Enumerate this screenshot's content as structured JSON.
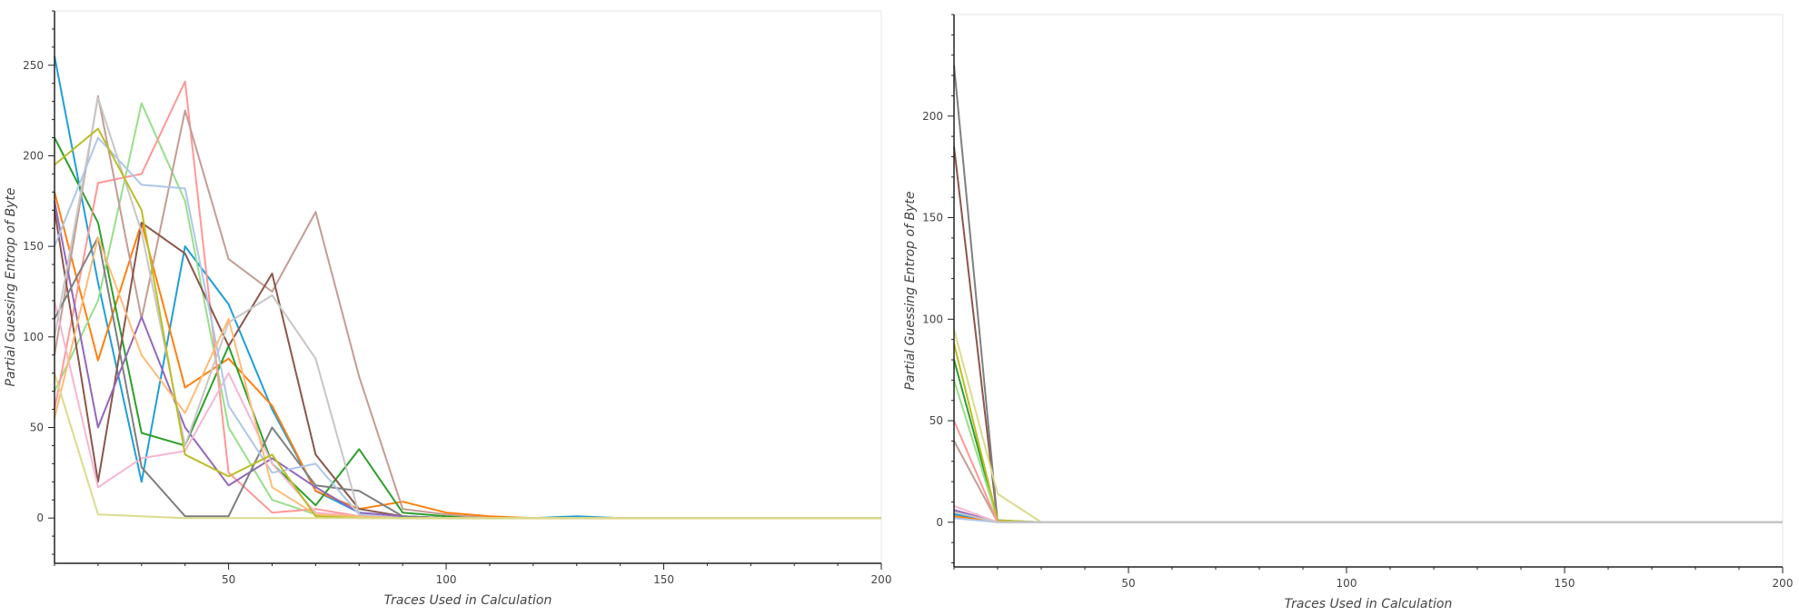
{
  "chart_data": [
    {
      "type": "line",
      "xlabel": "Traces Used in Calculation",
      "ylabel": "Partial Guessing Entrop of Byte",
      "xlim": [
        10,
        200
      ],
      "ylim": [
        -25,
        280
      ],
      "xticks": [
        50,
        100,
        150,
        200
      ],
      "yticks": [
        0,
        50,
        100,
        150,
        200,
        250
      ],
      "x": [
        10,
        20,
        30,
        40,
        50,
        60,
        70,
        80,
        90,
        100,
        110,
        120,
        130,
        140,
        150,
        160,
        170,
        180,
        190,
        200
      ],
      "series": [
        {
          "color": "#1f9fd8",
          "values": [
            255,
            130,
            20,
            150,
            118,
            60,
            15,
            3,
            1,
            0,
            0,
            0,
            1,
            0,
            0,
            0,
            0,
            0,
            0,
            0
          ]
        },
        {
          "color": "#ff7f0e",
          "values": [
            180,
            87,
            163,
            72,
            88,
            62,
            15,
            5,
            9,
            3,
            1,
            0,
            0,
            0,
            0,
            0,
            0,
            0,
            0,
            0
          ]
        },
        {
          "color": "#2ca02c",
          "values": [
            210,
            163,
            47,
            40,
            95,
            30,
            7,
            38,
            3,
            1,
            0,
            0,
            0,
            0,
            0,
            0,
            0,
            0,
            0,
            0
          ]
        },
        {
          "color": "#98df8a",
          "values": [
            70,
            120,
            229,
            175,
            50,
            10,
            2,
            1,
            0,
            0,
            0,
            0,
            0,
            0,
            0,
            0,
            0,
            0,
            0,
            0
          ]
        },
        {
          "color": "#ff9896",
          "values": [
            60,
            185,
            190,
            241,
            25,
            3,
            5,
            1,
            0,
            0,
            0,
            0,
            0,
            0,
            0,
            0,
            0,
            0,
            0,
            0
          ]
        },
        {
          "color": "#c49c94",
          "values": [
            90,
            233,
            110,
            225,
            143,
            125,
            169,
            78,
            5,
            2,
            0,
            0,
            0,
            0,
            0,
            0,
            0,
            0,
            0,
            0
          ]
        },
        {
          "color": "#8c564b",
          "values": [
            170,
            20,
            163,
            146,
            95,
            135,
            35,
            5,
            1,
            0,
            0,
            0,
            0,
            0,
            0,
            0,
            0,
            0,
            0,
            0
          ]
        },
        {
          "color": "#9467bd",
          "values": [
            175,
            50,
            111,
            50,
            18,
            33,
            17,
            3,
            1,
            0,
            0,
            0,
            0,
            0,
            0,
            0,
            0,
            0,
            0,
            0
          ]
        },
        {
          "color": "#f7b6d2",
          "values": [
            120,
            17,
            33,
            37,
            80,
            30,
            3,
            1,
            0,
            0,
            0,
            0,
            0,
            0,
            0,
            0,
            0,
            0,
            0,
            0
          ]
        },
        {
          "color": "#7f7f7f",
          "values": [
            110,
            155,
            28,
            1,
            1,
            50,
            18,
            15,
            1,
            0,
            0,
            0,
            0,
            0,
            0,
            0,
            0,
            0,
            0,
            0
          ]
        },
        {
          "color": "#c7c7c7",
          "values": [
            100,
            232,
            158,
            40,
            108,
            123,
            88,
            2,
            0,
            0,
            0,
            0,
            0,
            0,
            0,
            0,
            0,
            0,
            0,
            0
          ]
        },
        {
          "color": "#aec7e8",
          "values": [
            150,
            210,
            184,
            182,
            62,
            25,
            30,
            2,
            0,
            0,
            0,
            0,
            0,
            0,
            0,
            0,
            0,
            0,
            0,
            0
          ]
        },
        {
          "color": "#ffbb78",
          "values": [
            55,
            155,
            90,
            58,
            110,
            17,
            2,
            1,
            0,
            0,
            0,
            0,
            0,
            0,
            0,
            0,
            0,
            0,
            0,
            0
          ]
        },
        {
          "color": "#bcbd22",
          "values": [
            195,
            215,
            170,
            35,
            23,
            35,
            1,
            0,
            0,
            0,
            0,
            0,
            0,
            0,
            0,
            0,
            0,
            0,
            0,
            0
          ]
        },
        {
          "color": "#dbdb8d",
          "values": [
            80,
            2,
            1,
            0,
            0,
            0,
            0,
            0,
            0,
            0,
            0,
            0,
            0,
            0,
            0,
            0,
            0,
            0,
            0,
            0
          ]
        }
      ]
    },
    {
      "type": "line",
      "xlabel": "Traces Used in Calculation",
      "ylabel": "Partial Guessing Entrop of Byte",
      "xlim": [
        10,
        200
      ],
      "ylim": [
        -22,
        250
      ],
      "xticks": [
        50,
        100,
        150,
        200
      ],
      "yticks": [
        0,
        50,
        100,
        150,
        200
      ],
      "x": [
        10,
        20,
        30,
        40,
        50,
        60,
        70,
        80,
        90,
        100,
        110,
        120,
        130,
        140,
        150,
        160,
        170,
        180,
        190,
        200
      ],
      "series": [
        {
          "color": "#8c564b",
          "values": [
            185,
            0,
            0,
            0,
            0,
            0,
            0,
            0,
            0,
            0,
            0,
            0,
            0,
            0,
            0,
            0,
            0,
            0,
            0,
            0
          ]
        },
        {
          "color": "#7f7f7f",
          "values": [
            225,
            0,
            0,
            0,
            0,
            0,
            0,
            0,
            0,
            0,
            0,
            0,
            0,
            0,
            0,
            0,
            0,
            0,
            0,
            0
          ]
        },
        {
          "color": "#c49c94",
          "values": [
            40,
            0,
            0,
            0,
            0,
            0,
            0,
            0,
            0,
            0,
            0,
            0,
            0,
            0,
            0,
            0,
            0,
            0,
            0,
            0
          ]
        },
        {
          "color": "#2ca02c",
          "values": [
            80,
            1,
            0,
            0,
            0,
            0,
            0,
            0,
            0,
            0,
            0,
            0,
            0,
            0,
            0,
            0,
            0,
            0,
            0,
            0
          ]
        },
        {
          "color": "#98df8a",
          "values": [
            70,
            1,
            0,
            0,
            0,
            0,
            0,
            0,
            0,
            0,
            0,
            0,
            0,
            0,
            0,
            0,
            0,
            0,
            0,
            0
          ]
        },
        {
          "color": "#bcbd22",
          "values": [
            88,
            1,
            0,
            0,
            0,
            0,
            0,
            0,
            0,
            0,
            0,
            0,
            0,
            0,
            0,
            0,
            0,
            0,
            0,
            0
          ]
        },
        {
          "color": "#dbdb8d",
          "values": [
            95,
            14,
            0,
            0,
            0,
            0,
            0,
            0,
            0,
            0,
            0,
            0,
            0,
            0,
            0,
            0,
            0,
            0,
            0,
            0
          ]
        },
        {
          "color": "#ff9896",
          "values": [
            50,
            0,
            0,
            0,
            0,
            0,
            0,
            0,
            0,
            0,
            0,
            0,
            0,
            0,
            0,
            0,
            0,
            0,
            0,
            0
          ]
        },
        {
          "color": "#9467bd",
          "values": [
            6,
            0,
            0,
            0,
            0,
            0,
            0,
            0,
            0,
            0,
            0,
            0,
            0,
            0,
            0,
            0,
            0,
            0,
            0,
            0
          ]
        },
        {
          "color": "#1f9fd8",
          "values": [
            4,
            0,
            0,
            0,
            0,
            0,
            0,
            0,
            0,
            0,
            0,
            0,
            0,
            0,
            0,
            0,
            0,
            0,
            0,
            0
          ]
        },
        {
          "color": "#ff7f0e",
          "values": [
            3,
            0,
            0,
            0,
            0,
            0,
            0,
            0,
            0,
            0,
            0,
            0,
            0,
            0,
            0,
            0,
            0,
            0,
            0,
            0
          ]
        },
        {
          "color": "#f7b6d2",
          "values": [
            8,
            0,
            0,
            0,
            0,
            0,
            0,
            0,
            0,
            0,
            0,
            0,
            0,
            0,
            0,
            0,
            0,
            0,
            0,
            0
          ]
        },
        {
          "color": "#aec7e8",
          "values": [
            2,
            0,
            0,
            0,
            0,
            0,
            0,
            0,
            0,
            0,
            0,
            0,
            0,
            0,
            0,
            0,
            0,
            0,
            0,
            0
          ]
        },
        {
          "color": "#c7c7c7",
          "values": [
            5,
            0,
            0,
            0,
            0,
            0,
            0,
            0,
            0,
            0,
            0,
            0,
            0,
            0,
            0,
            0,
            0,
            0,
            0,
            0
          ]
        }
      ]
    }
  ]
}
